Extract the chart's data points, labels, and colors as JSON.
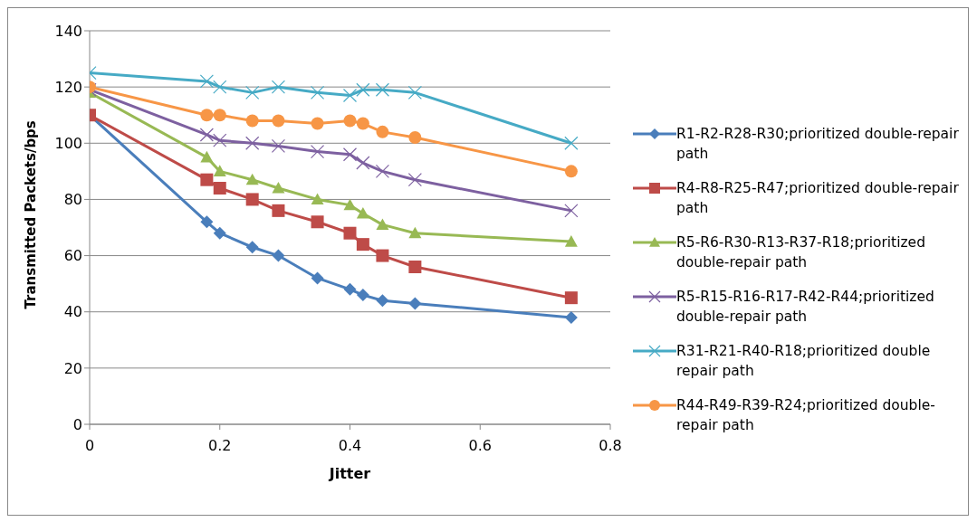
{
  "chart_data": {
    "type": "line",
    "xlabel": "Jitter",
    "ylabel": "Transmitted Packets/bps",
    "x": [
      0,
      0.18,
      0.2,
      0.25,
      0.29,
      0.35,
      0.4,
      0.42,
      0.45,
      0.5,
      0.74
    ],
    "xlim": [
      0,
      0.8
    ],
    "xticks": [
      0,
      0.2,
      0.4,
      0.6,
      0.8
    ],
    "ylim": [
      0,
      140
    ],
    "yticks": [
      0,
      20,
      40,
      60,
      80,
      100,
      120,
      140
    ],
    "grid": "y",
    "legend": "right",
    "line_style": "solid",
    "series": [
      {
        "name": "R1-R2-R28-R30;prioritized double-repair path",
        "color": "#4a7ebb",
        "marker": "diamond",
        "values": [
          110,
          72,
          68,
          63,
          60,
          52,
          48,
          46,
          44,
          43,
          38
        ]
      },
      {
        "name": "R4-R8-R25-R47;prioritized double-repair path",
        "color": "#be4b48",
        "marker": "square",
        "values": [
          110,
          87,
          84,
          80,
          76,
          72,
          68,
          64,
          60,
          56,
          45
        ]
      },
      {
        "name": "R5-R6-R30-R13-R37-R18;prioritized double-repair path",
        "color": "#98b954",
        "marker": "triangle",
        "values": [
          118,
          95,
          90,
          87,
          84,
          80,
          78,
          75,
          71,
          68,
          65
        ]
      },
      {
        "name": "R5-R15-R16-R17-R42-R44;prioritized double-repair path",
        "color": "#7d60a0",
        "marker": "cross",
        "values": [
          119,
          103,
          101,
          100,
          99,
          97,
          96,
          93,
          90,
          87,
          76
        ]
      },
      {
        "name": "R31-R21-R40-R18;prioritized double repair path",
        "color": "#46aac5",
        "marker": "cross",
        "values": [
          125,
          122,
          120,
          118,
          120,
          118,
          117,
          119,
          119,
          118,
          100
        ]
      },
      {
        "name": "R44-R49-R39-R24;prioritized double-repair path",
        "color": "#f79646",
        "marker": "circle",
        "values": [
          120,
          110,
          110,
          108,
          108,
          107,
          108,
          107,
          104,
          102,
          90
        ]
      }
    ]
  }
}
